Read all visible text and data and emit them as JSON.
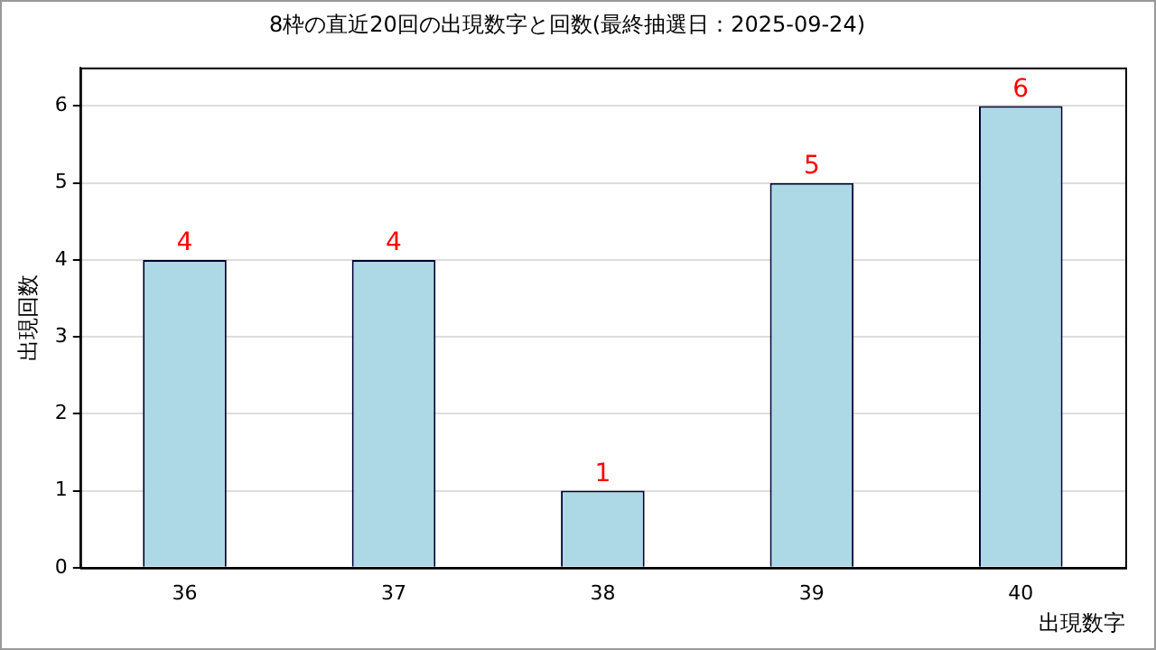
{
  "chart_data": {
    "type": "bar",
    "title": "8枠の直近20回の出現数字と回数(最終抽選日：2025-09-24)",
    "xlabel": "出現数字",
    "ylabel": "出現回数",
    "categories": [
      "36",
      "37",
      "38",
      "39",
      "40"
    ],
    "values": [
      4,
      4,
      1,
      5,
      6
    ],
    "color": "#add8e6",
    "ylim": [
      0,
      6.5
    ],
    "yticks": [
      0,
      1,
      2,
      3,
      4,
      5,
      6
    ],
    "grid": "y",
    "data_labels": true,
    "legend": false
  }
}
